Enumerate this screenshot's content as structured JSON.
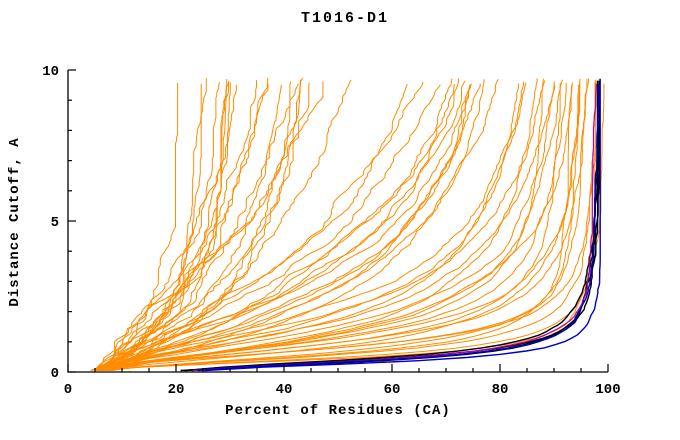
{
  "window": {
    "title": "T1016-D1"
  },
  "chart_data": {
    "type": "line",
    "title": "T1016-D1",
    "xlabel": "Percent of Residues (CA)",
    "ylabel": "Distance Cutoff, A",
    "xlim": [
      0,
      100
    ],
    "ylim": [
      0,
      10
    ],
    "x_ticks": [
      0,
      20,
      40,
      60,
      80,
      100
    ],
    "y_ticks": [
      0,
      5,
      10
    ],
    "x_minor_step": 5,
    "y_minor_step": 1,
    "grid": false,
    "legend": "none",
    "axis_style": "L-shape, ticks inward, black",
    "curve_model": "x(y) = x0 + (cov - x0) * y^a / (y^a + c^a), y sampled 0.05..~9.7",
    "curve_params_format": [
      "x0",
      "cov",
      "c",
      "a"
    ],
    "series_groups": [
      {
        "name": "models-other",
        "color": "#ff8c00",
        "stroke_width": 1,
        "curves": [
          [
            5,
            99,
            0.5,
            2.0
          ],
          [
            6,
            98,
            0.6,
            1.9
          ],
          [
            4,
            98,
            0.8,
            2.1
          ],
          [
            7,
            97,
            0.7,
            1.8
          ],
          [
            5,
            97,
            1.0,
            2.0
          ],
          [
            6,
            96,
            0.9,
            1.7
          ],
          [
            8,
            96,
            1.2,
            1.9
          ],
          [
            5,
            95,
            0.8,
            2.2
          ],
          [
            6,
            95,
            1.3,
            1.6
          ],
          [
            4,
            94,
            1.1,
            1.8
          ],
          [
            7,
            94,
            0.6,
            2.0
          ],
          [
            5,
            93,
            1.5,
            1.7
          ],
          [
            6,
            92,
            1.0,
            1.9
          ],
          [
            8,
            91,
            1.4,
            1.6
          ],
          [
            5,
            90,
            1.2,
            1.8
          ],
          [
            6,
            89,
            1.6,
            1.5
          ],
          [
            7,
            88,
            1.8,
            1.7
          ],
          [
            5,
            97,
            0.45,
            2.2
          ],
          [
            6,
            98,
            1.4,
            1.5
          ],
          [
            4,
            96,
            1.7,
            1.6
          ],
          [
            5,
            94,
            2.2,
            1.5
          ],
          [
            6,
            92,
            2.6,
            1.4
          ],
          [
            7,
            90,
            3.0,
            1.3
          ],
          [
            5,
            88,
            3.4,
            1.5
          ],
          [
            6,
            86,
            2.4,
            1.4
          ],
          [
            8,
            93,
            3.8,
            1.2
          ],
          [
            5,
            91,
            4.2,
            1.3
          ],
          [
            6,
            84,
            2.9,
            1.5
          ],
          [
            7,
            89,
            3.3,
            1.4
          ],
          [
            5,
            87,
            4.5,
            1.2
          ],
          [
            6,
            95,
            2.0,
            1.6
          ],
          [
            4,
            82,
            3.6,
            1.3
          ],
          [
            7,
            85,
            2.7,
            1.5
          ],
          [
            5,
            92,
            3.1,
            1.25
          ],
          [
            6,
            90,
            4.0,
            1.35
          ],
          [
            5,
            24,
            2.0,
            1.1
          ],
          [
            6,
            28,
            2.5,
            1.2
          ],
          [
            5,
            32,
            3.0,
            1.15
          ],
          [
            7,
            36,
            3.4,
            1.25
          ],
          [
            6,
            40,
            3.8,
            1.1
          ],
          [
            5,
            45,
            4.2,
            1.3
          ],
          [
            8,
            50,
            4.6,
            1.2
          ],
          [
            6,
            55,
            5.0,
            1.15
          ],
          [
            5,
            60,
            5.5,
            1.25
          ],
          [
            7,
            65,
            6.0,
            1.1
          ],
          [
            6,
            70,
            6.5,
            1.2
          ],
          [
            5,
            75,
            7.0,
            1.15
          ],
          [
            8,
            30,
            1.6,
            1.3
          ],
          [
            5,
            38,
            2.2,
            1.0
          ],
          [
            6,
            48,
            2.8,
            1.35
          ],
          [
            7,
            58,
            3.6,
            1.05
          ],
          [
            5,
            26,
            1.4,
            1.2
          ],
          [
            6,
            34,
            1.9,
            1.1
          ],
          [
            8,
            68,
            4.8,
            1.3
          ],
          [
            5,
            52,
            3.2,
            1.0
          ]
        ]
      },
      {
        "name": "models-highlighted-black",
        "color": "#000000",
        "stroke_width": 1.4,
        "curves": [
          [
            20,
            98.2,
            0.4,
            1.9
          ],
          [
            22,
            97.8,
            0.45,
            2.0
          ],
          [
            19,
            98.6,
            0.38,
            1.85
          ],
          [
            21,
            97.5,
            0.5,
            1.95
          ]
        ]
      },
      {
        "name": "model-highlighted-magenta",
        "color": "#b400b4",
        "stroke_width": 1.2,
        "curves": [
          [
            22,
            98.0,
            0.44,
            1.95
          ]
        ]
      },
      {
        "name": "models-highlighted-blue",
        "color": "#0000c8",
        "stroke_width": 1.4,
        "curves": [
          [
            24,
            99.0,
            0.35,
            2.1
          ],
          [
            23,
            98.4,
            0.42,
            2.0
          ]
        ]
      }
    ]
  }
}
